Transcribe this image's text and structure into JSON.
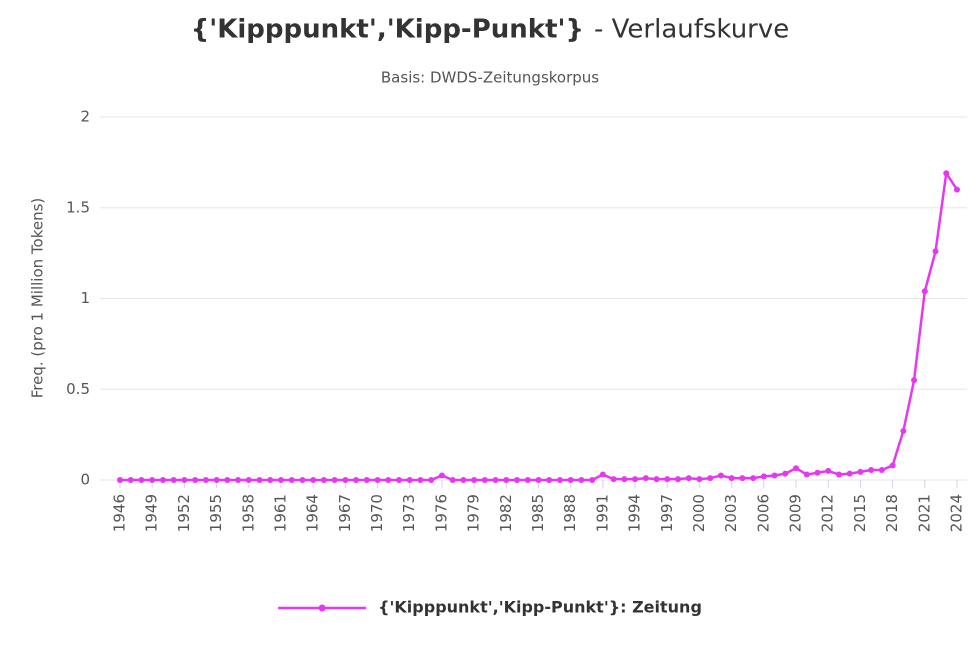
{
  "chart_data": {
    "type": "line",
    "title": "{'Kipppunkt','Kipp-Punkt'}",
    "title_suffix": "- Verlaufskurve",
    "subtitle": "Basis: DWDS-Zeitungskorpus",
    "y_label": "Freq. (pro 1 Million Tokens)",
    "x": [
      1946,
      1947,
      1948,
      1949,
      1950,
      1951,
      1952,
      1953,
      1954,
      1955,
      1956,
      1957,
      1958,
      1959,
      1960,
      1961,
      1962,
      1963,
      1964,
      1965,
      1966,
      1967,
      1968,
      1969,
      1970,
      1971,
      1972,
      1973,
      1974,
      1975,
      1976,
      1977,
      1978,
      1979,
      1980,
      1981,
      1982,
      1983,
      1984,
      1985,
      1986,
      1987,
      1988,
      1989,
      1990,
      1991,
      1992,
      1993,
      1994,
      1995,
      1996,
      1997,
      1998,
      1999,
      2000,
      2001,
      2002,
      2003,
      2004,
      2005,
      2006,
      2007,
      2008,
      2009,
      2010,
      2011,
      2012,
      2013,
      2014,
      2015,
      2016,
      2017,
      2018,
      2019,
      2020,
      2021,
      2022,
      2023,
      2024
    ],
    "series": [
      {
        "name": "{'Kipppunkt','Kipp-Punkt'}: Zeitung",
        "color": "#e638f0",
        "values": [
          0,
          0,
          0,
          0,
          0,
          0,
          0,
          0,
          0,
          0,
          0,
          0,
          0,
          0,
          0,
          0,
          0,
          0,
          0,
          0,
          0,
          0,
          0,
          0,
          0,
          0,
          0,
          0,
          0,
          0,
          0.025,
          0,
          0,
          0,
          0,
          0,
          0,
          0,
          0,
          0,
          0,
          0,
          0,
          0,
          0,
          0.03,
          0.005,
          0.005,
          0.005,
          0.01,
          0.005,
          0.005,
          0.005,
          0.01,
          0.005,
          0.01,
          0.025,
          0.01,
          0.01,
          0.01,
          0.02,
          0.025,
          0.035,
          0.065,
          0.03,
          0.04,
          0.05,
          0.03,
          0.035,
          0.045,
          0.055,
          0.055,
          0.08,
          0.27,
          0.55,
          1.04,
          1.26,
          1.69,
          1.6
        ]
      }
    ],
    "xlim": [
      1946,
      2024
    ],
    "xticks": [
      1946,
      1949,
      1952,
      1955,
      1958,
      1961,
      1964,
      1967,
      1970,
      1973,
      1976,
      1979,
      1982,
      1985,
      1988,
      1991,
      1994,
      1997,
      2000,
      2003,
      2006,
      2009,
      2012,
      2015,
      2018,
      2021,
      2024
    ],
    "ylim": [
      0,
      2
    ],
    "yticks": [
      0,
      0.5,
      1,
      1.5,
      2
    ],
    "grid": true,
    "legend": "bottom"
  }
}
